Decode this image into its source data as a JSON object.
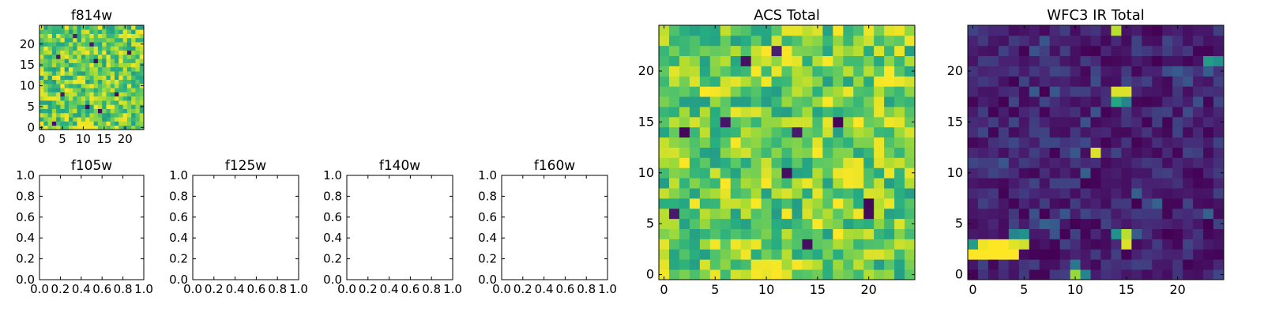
{
  "chart_data": [
    {
      "id": "f814w",
      "type": "heatmap",
      "title": "f814w",
      "grid_size": 25,
      "xlim": [
        -0.5,
        24.5
      ],
      "ylim": [
        -0.5,
        24.5
      ],
      "x_ticks": [
        0,
        5,
        10,
        15,
        20
      ],
      "y_ticks": [
        0,
        5,
        10,
        15,
        20
      ],
      "colormap": "viridis",
      "range": [
        0.55,
        1.0
      ],
      "pattern": "noise",
      "bright_cells": [
        [
          8,
          0
        ],
        [
          9,
          0
        ],
        [
          10,
          0
        ],
        [
          11,
          0
        ],
        [
          12,
          0
        ],
        [
          9,
          1
        ],
        [
          10,
          1
        ],
        [
          11,
          1
        ],
        [
          12,
          1
        ]
      ],
      "dark_cells": [
        [
          5,
          8
        ],
        [
          18,
          8
        ],
        [
          14,
          4
        ],
        [
          3,
          1
        ],
        [
          13,
          16
        ],
        [
          8,
          22
        ],
        [
          12,
          20
        ],
        [
          21,
          18
        ],
        [
          11,
          5
        ],
        [
          4,
          17
        ]
      ]
    },
    {
      "id": "f105w",
      "type": "empty",
      "title": "f105w",
      "xlim": [
        0,
        1
      ],
      "ylim": [
        0,
        1
      ],
      "x_ticks": [
        "0.0",
        "0.2",
        "0.4",
        "0.6",
        "0.8",
        "1.0"
      ],
      "y_ticks": [
        "0.0",
        "0.2",
        "0.4",
        "0.6",
        "0.8",
        "1.0"
      ]
    },
    {
      "id": "f125w",
      "type": "empty",
      "title": "f125w",
      "xlim": [
        0,
        1
      ],
      "ylim": [
        0,
        1
      ],
      "x_ticks": [
        "0.0",
        "0.2",
        "0.4",
        "0.6",
        "0.8",
        "1.0"
      ],
      "y_ticks": [
        "0.0",
        "0.2",
        "0.4",
        "0.6",
        "0.8",
        "1.0"
      ]
    },
    {
      "id": "f140w",
      "type": "empty",
      "title": "f140w",
      "xlim": [
        0,
        1
      ],
      "ylim": [
        0,
        1
      ],
      "x_ticks": [
        "0.0",
        "0.2",
        "0.4",
        "0.6",
        "0.8",
        "1.0"
      ],
      "y_ticks": [
        "0.0",
        "0.2",
        "0.4",
        "0.6",
        "0.8",
        "1.0"
      ]
    },
    {
      "id": "f160w",
      "type": "empty",
      "title": "f160w",
      "xlim": [
        0,
        1
      ],
      "ylim": [
        0,
        1
      ],
      "x_ticks": [
        "0.0",
        "0.2",
        "0.4",
        "0.6",
        "0.8",
        "1.0"
      ],
      "y_ticks": [
        "0.0",
        "0.2",
        "0.4",
        "0.6",
        "0.8",
        "1.0"
      ]
    },
    {
      "id": "acs-total",
      "type": "heatmap",
      "title": "ACS Total",
      "grid_size": 25,
      "xlim": [
        -0.5,
        24.5
      ],
      "ylim": [
        -0.5,
        24.5
      ],
      "x_ticks": [
        0,
        5,
        10,
        15,
        20
      ],
      "y_ticks": [
        0,
        5,
        10,
        15,
        20
      ],
      "colormap": "viridis",
      "range": [
        0.55,
        1.0
      ],
      "pattern": "noise",
      "bright_cells": [
        [
          9,
          1
        ],
        [
          10,
          1
        ],
        [
          11,
          1
        ],
        [
          9,
          0
        ],
        [
          10,
          0
        ],
        [
          11,
          0
        ],
        [
          12,
          0
        ],
        [
          8,
          2
        ],
        [
          19,
          9
        ],
        [
          22,
          10
        ],
        [
          11,
          20
        ],
        [
          22,
          19
        ]
      ],
      "dark_cells": [
        [
          2,
          14
        ],
        [
          6,
          15
        ],
        [
          13,
          14
        ],
        [
          20,
          7
        ],
        [
          20,
          6
        ],
        [
          14,
          3
        ],
        [
          17,
          15
        ],
        [
          12,
          10
        ],
        [
          1,
          6
        ],
        [
          8,
          21
        ],
        [
          11,
          22
        ]
      ]
    },
    {
      "id": "wfc3-ir-total",
      "type": "heatmap",
      "title": "WFC3 IR Total",
      "grid_size": 25,
      "xlim": [
        -0.5,
        24.5
      ],
      "ylim": [
        -0.5,
        24.5
      ],
      "x_ticks": [
        0,
        5,
        10,
        15,
        20
      ],
      "y_ticks": [
        0,
        5,
        10,
        15,
        20
      ],
      "colormap": "viridis",
      "range": [
        0.0,
        0.22
      ],
      "pattern": "mostly-low",
      "hot_cells": [
        {
          "x": 0,
          "y": 2,
          "v": 1.0
        },
        {
          "x": 1,
          "y": 2,
          "v": 1.0
        },
        {
          "x": 2,
          "y": 2,
          "v": 1.0
        },
        {
          "x": 3,
          "y": 2,
          "v": 1.0
        },
        {
          "x": 4,
          "y": 2,
          "v": 1.0
        },
        {
          "x": 0,
          "y": 3,
          "v": 0.55
        },
        {
          "x": 1,
          "y": 3,
          "v": 0.98
        },
        {
          "x": 2,
          "y": 3,
          "v": 1.0
        },
        {
          "x": 3,
          "y": 3,
          "v": 1.0
        },
        {
          "x": 4,
          "y": 3,
          "v": 0.96
        },
        {
          "x": 5,
          "y": 3,
          "v": 0.93
        },
        {
          "x": 4,
          "y": 4,
          "v": 0.45
        },
        {
          "x": 5,
          "y": 4,
          "v": 0.5
        },
        {
          "x": 10,
          "y": 0,
          "v": 0.85
        },
        {
          "x": 11,
          "y": 0,
          "v": 0.45
        },
        {
          "x": 10,
          "y": 1,
          "v": 0.4
        },
        {
          "x": 15,
          "y": 3,
          "v": 0.95
        },
        {
          "x": 15,
          "y": 4,
          "v": 0.9
        },
        {
          "x": 14,
          "y": 4,
          "v": 0.5
        },
        {
          "x": 12,
          "y": 12,
          "v": 0.95
        },
        {
          "x": 14,
          "y": 17,
          "v": 0.6
        },
        {
          "x": 15,
          "y": 17,
          "v": 0.45
        },
        {
          "x": 14,
          "y": 18,
          "v": 0.95
        },
        {
          "x": 15,
          "y": 18,
          "v": 0.95
        },
        {
          "x": 14,
          "y": 24,
          "v": 0.9
        },
        {
          "x": 23,
          "y": 21,
          "v": 0.55
        },
        {
          "x": 24,
          "y": 21,
          "v": 0.5
        },
        {
          "x": 23,
          "y": 20,
          "v": 0.3
        }
      ]
    }
  ]
}
